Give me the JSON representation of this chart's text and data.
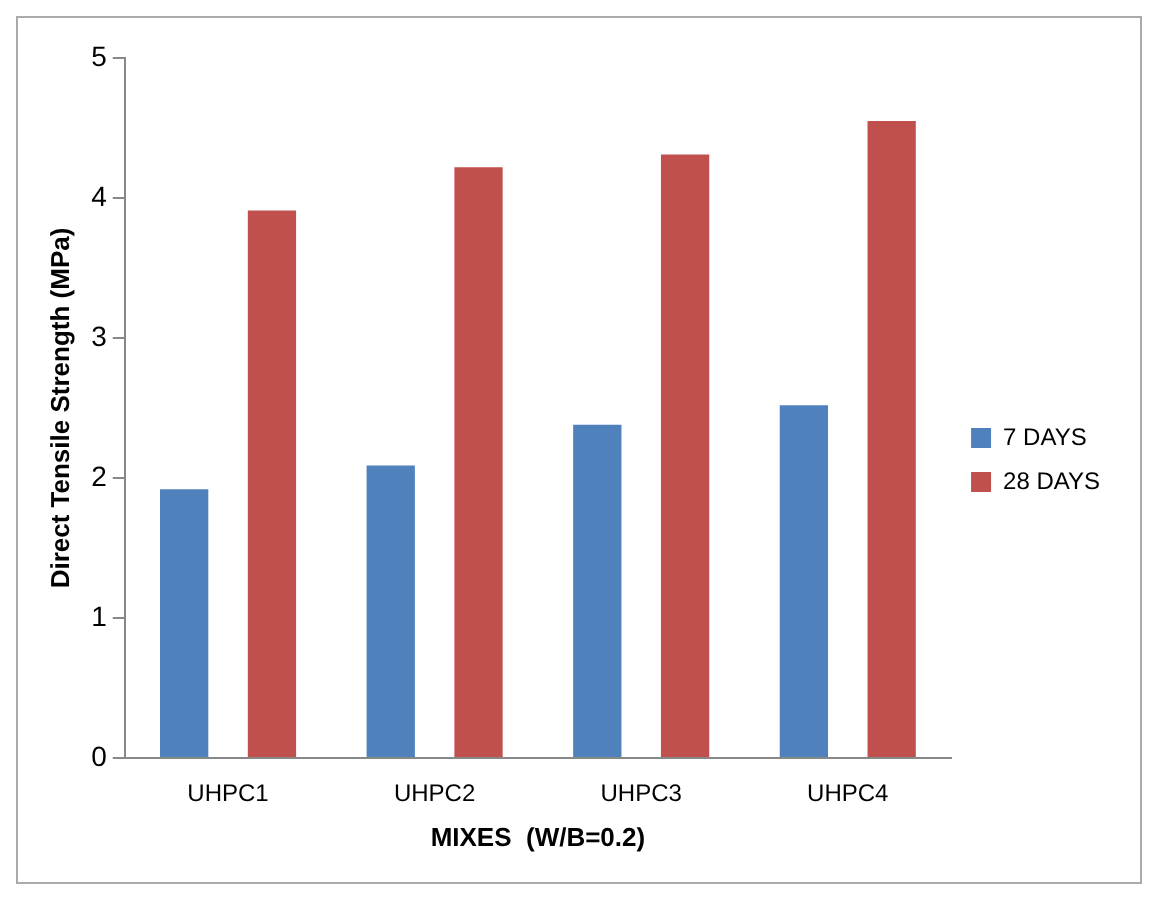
{
  "chart_data": {
    "type": "bar",
    "xlabel": "MIXES  (W/B=0.2)",
    "ylabel": "Direct Tensile Strength (MPa)",
    "categories": [
      "UHPC1",
      "UHPC2",
      "UHPC3",
      "UHPC4"
    ],
    "series": [
      {
        "name": "7 DAYS",
        "color": "#4f81bd",
        "values": [
          1.92,
          2.09,
          2.38,
          2.52
        ]
      },
      {
        "name": "28 DAYS",
        "color": "#c0504d",
        "values": [
          3.91,
          4.22,
          4.31,
          4.55
        ]
      }
    ],
    "ylim": [
      0,
      5
    ],
    "yticks": [
      0,
      1,
      2,
      3,
      4,
      5
    ],
    "grid": false,
    "legend": "right"
  }
}
